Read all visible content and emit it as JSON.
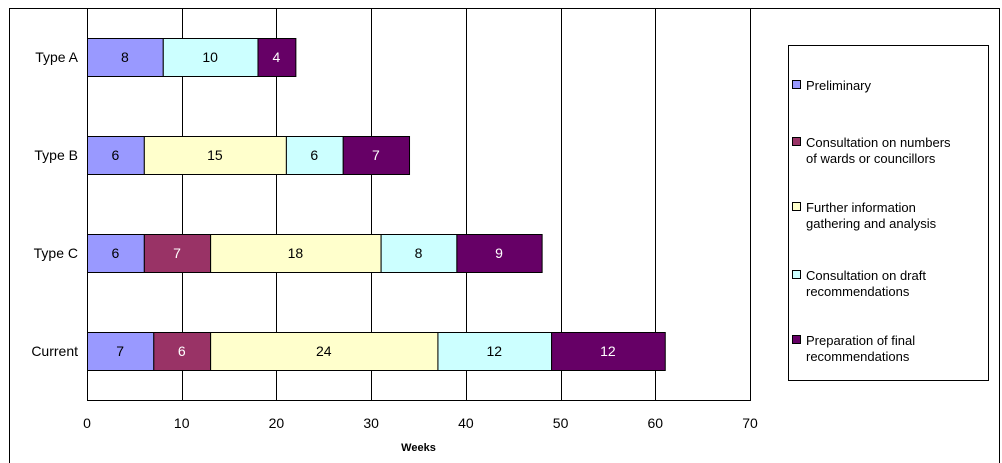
{
  "chart_data": {
    "type": "bar",
    "orientation": "horizontal",
    "stacked": true,
    "title": "",
    "xlabel": "Weeks",
    "ylabel": "",
    "xlim": [
      0,
      70
    ],
    "xticks": [
      0,
      10,
      20,
      30,
      40,
      50,
      60,
      70
    ],
    "grid": "vertical",
    "legend_position": "right",
    "categories": [
      "Type A",
      "Type B",
      "Type C",
      "Current"
    ],
    "series": [
      {
        "name": "Preliminary",
        "color": "#9999ff",
        "label_color": "#000000",
        "values": [
          8,
          6,
          6,
          7
        ]
      },
      {
        "name": "Consultation on numbers of wards or councillors",
        "color": "#993366",
        "label_color": "#ffffff",
        "values": [
          null,
          null,
          7,
          6
        ]
      },
      {
        "name": "Further information gathering and analysis",
        "color": "#ffffcc",
        "label_color": "#000000",
        "values": [
          null,
          15,
          18,
          24
        ]
      },
      {
        "name": "Consultation on draft recommendations",
        "color": "#ccffff",
        "label_color": "#000000",
        "values": [
          10,
          6,
          8,
          12
        ]
      },
      {
        "name": "Preparation of final recommendations",
        "color": "#660066",
        "label_color": "#ffffff",
        "values": [
          4,
          7,
          9,
          12
        ]
      }
    ]
  }
}
